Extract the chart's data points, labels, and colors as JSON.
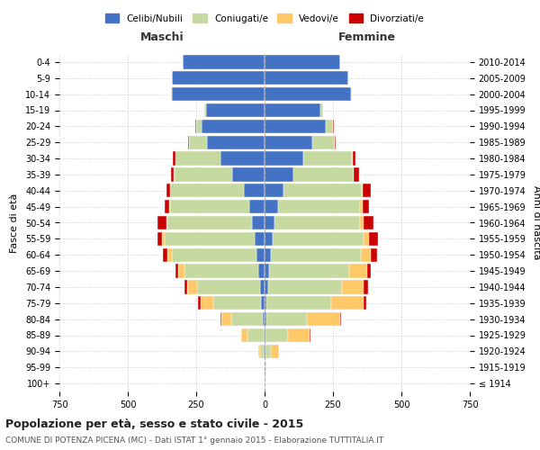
{
  "age_groups": [
    "100+",
    "95-99",
    "90-94",
    "85-89",
    "80-84",
    "75-79",
    "70-74",
    "65-69",
    "60-64",
    "55-59",
    "50-54",
    "45-49",
    "40-44",
    "35-39",
    "30-34",
    "25-29",
    "20-24",
    "15-19",
    "10-14",
    "5-9",
    "0-4"
  ],
  "birth_years": [
    "≤ 1914",
    "1915-1919",
    "1920-1924",
    "1925-1929",
    "1930-1934",
    "1935-1939",
    "1940-1944",
    "1945-1949",
    "1950-1954",
    "1955-1959",
    "1960-1964",
    "1965-1969",
    "1970-1974",
    "1975-1979",
    "1980-1984",
    "1985-1989",
    "1990-1994",
    "1995-1999",
    "2000-2004",
    "2005-2009",
    "2010-2014"
  ],
  "males": {
    "celibe": [
      0,
      0,
      2,
      4,
      8,
      12,
      18,
      22,
      30,
      35,
      45,
      55,
      75,
      120,
      160,
      210,
      230,
      215,
      340,
      340,
      300
    ],
    "coniugato": [
      0,
      2,
      15,
      60,
      115,
      175,
      230,
      270,
      310,
      330,
      310,
      290,
      270,
      210,
      165,
      65,
      20,
      5,
      2,
      0,
      0
    ],
    "vedovo": [
      0,
      1,
      5,
      20,
      35,
      45,
      35,
      25,
      15,
      10,
      5,
      3,
      2,
      1,
      0,
      0,
      0,
      0,
      0,
      0,
      0
    ],
    "divorziato": [
      0,
      0,
      0,
      2,
      3,
      12,
      10,
      8,
      18,
      18,
      30,
      18,
      12,
      12,
      12,
      5,
      3,
      0,
      0,
      0,
      0
    ]
  },
  "females": {
    "nubile": [
      0,
      0,
      2,
      4,
      6,
      8,
      12,
      15,
      22,
      28,
      35,
      50,
      70,
      105,
      140,
      175,
      225,
      205,
      315,
      305,
      275
    ],
    "coniugata": [
      0,
      3,
      20,
      80,
      150,
      235,
      270,
      295,
      330,
      335,
      315,
      300,
      285,
      220,
      180,
      80,
      25,
      8,
      3,
      0,
      0
    ],
    "vedova": [
      1,
      4,
      30,
      80,
      120,
      120,
      80,
      65,
      35,
      20,
      12,
      8,
      4,
      2,
      1,
      0,
      0,
      0,
      0,
      0,
      0
    ],
    "divorziata": [
      0,
      0,
      1,
      3,
      5,
      8,
      15,
      12,
      25,
      30,
      35,
      22,
      30,
      18,
      12,
      5,
      2,
      0,
      0,
      0,
      0
    ]
  },
  "color_celibe": "#4472c4",
  "color_coniugato": "#c5d9a0",
  "color_vedovo": "#ffc869",
  "color_divorziato": "#cc0000",
  "xlim": 750,
  "title_main": "Popolazione per età, sesso e stato civile - 2015",
  "title_sub": "COMUNE DI POTENZA PICENA (MC) - Dati ISTAT 1° gennaio 2015 - Elaborazione TUTTITALIA.IT",
  "ylabel_left": "Fasce di età",
  "ylabel_right": "Anni di nascita",
  "xlabel_left": "Maschi",
  "xlabel_right": "Femmine",
  "legend_labels": [
    "Celibi/Nubili",
    "Coniugati/e",
    "Vedovi/e",
    "Divorziati/e"
  ],
  "bg_color": "#ffffff",
  "grid_color": "#cccccc"
}
